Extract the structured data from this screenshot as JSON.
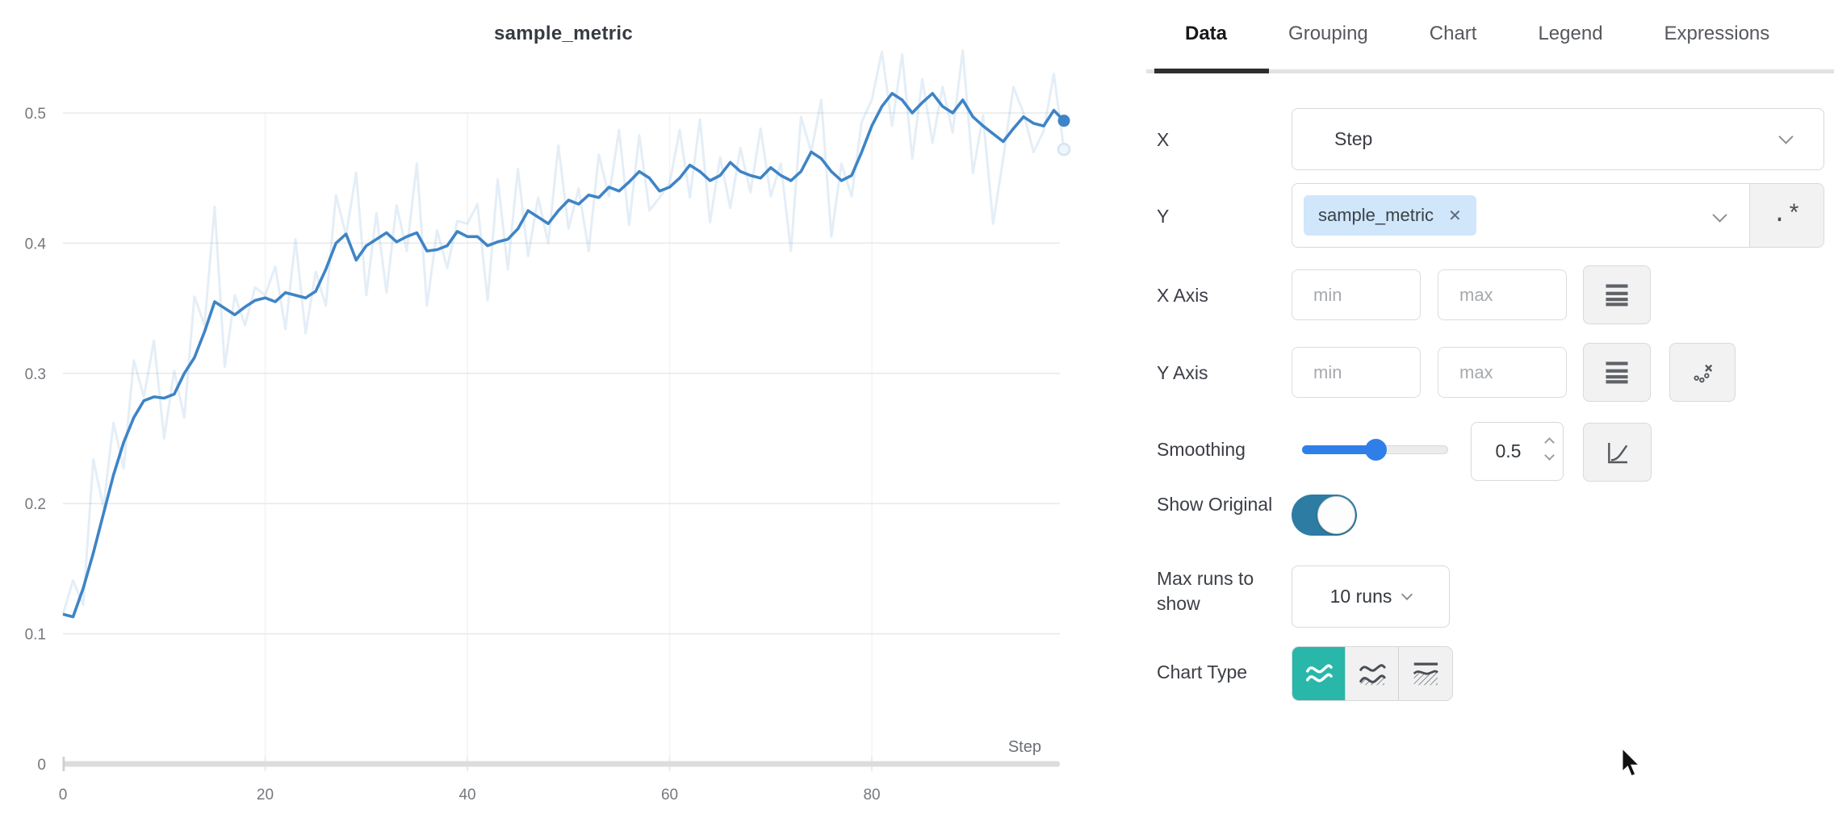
{
  "chart_data": {
    "type": "line",
    "title": "sample_metric",
    "xlabel": "Step",
    "ylabel": "",
    "x_start": 0,
    "x_step": 1,
    "xlim": [
      0,
      99
    ],
    "ylim": [
      0,
      0.56
    ],
    "xticks": [
      0,
      20,
      40,
      60,
      80
    ],
    "yticks": [
      0,
      0.1,
      0.2,
      0.3,
      0.4,
      0.5
    ],
    "grid": true,
    "legend": "none",
    "smoothing": 0.5,
    "line_color": "#3e84c6",
    "original_opacity": 0.14,
    "series": [
      {
        "name": "sample_metric (original)",
        "role": "original",
        "values": [
          0.115,
          0.141,
          0.122,
          0.234,
          0.197,
          0.262,
          0.227,
          0.31,
          0.282,
          0.325,
          0.25,
          0.302,
          0.266,
          0.359,
          0.337,
          0.428,
          0.305,
          0.36,
          0.337,
          0.366,
          0.36,
          0.382,
          0.334,
          0.403,
          0.331,
          0.378,
          0.352,
          0.437,
          0.406,
          0.454,
          0.36,
          0.423,
          0.362,
          0.429,
          0.394,
          0.461,
          0.352,
          0.41,
          0.381,
          0.417,
          0.415,
          0.43,
          0.356,
          0.449,
          0.38,
          0.457,
          0.39,
          0.435,
          0.4,
          0.475,
          0.411,
          0.442,
          0.394,
          0.468,
          0.436,
          0.487,
          0.414,
          0.483,
          0.425,
          0.435,
          0.446,
          0.487,
          0.435,
          0.495,
          0.416,
          0.466,
          0.427,
          0.473,
          0.439,
          0.488,
          0.436,
          0.461,
          0.394,
          0.497,
          0.47,
          0.51,
          0.405,
          0.461,
          0.436,
          0.493,
          0.51,
          0.547,
          0.49,
          0.545,
          0.465,
          0.526,
          0.477,
          0.52,
          0.485,
          0.548,
          0.454,
          0.498,
          0.415,
          0.465,
          0.52,
          0.5,
          0.47,
          0.486,
          0.53,
          0.472
        ]
      },
      {
        "name": "sample_metric (smoothed)",
        "role": "smoothed",
        "values": [
          0.115,
          0.113,
          0.135,
          0.162,
          0.192,
          0.222,
          0.247,
          0.266,
          0.279,
          0.282,
          0.281,
          0.284,
          0.3,
          0.312,
          0.332,
          0.355,
          0.35,
          0.345,
          0.351,
          0.356,
          0.358,
          0.355,
          0.362,
          0.36,
          0.358,
          0.363,
          0.38,
          0.4,
          0.407,
          0.387,
          0.398,
          0.403,
          0.408,
          0.401,
          0.405,
          0.408,
          0.394,
          0.395,
          0.398,
          0.409,
          0.405,
          0.405,
          0.398,
          0.401,
          0.403,
          0.411,
          0.425,
          0.42,
          0.415,
          0.425,
          0.433,
          0.43,
          0.437,
          0.435,
          0.443,
          0.44,
          0.447,
          0.455,
          0.45,
          0.44,
          0.443,
          0.45,
          0.46,
          0.455,
          0.448,
          0.452,
          0.462,
          0.455,
          0.452,
          0.45,
          0.458,
          0.452,
          0.448,
          0.455,
          0.47,
          0.465,
          0.455,
          0.448,
          0.452,
          0.47,
          0.49,
          0.505,
          0.515,
          0.51,
          0.5,
          0.508,
          0.515,
          0.505,
          0.5,
          0.51,
          0.497,
          0.49,
          0.484,
          0.478,
          0.488,
          0.497,
          0.492,
          0.49,
          0.502,
          0.494
        ]
      }
    ]
  },
  "panel": {
    "tabs": [
      {
        "label": "Data",
        "active": true
      },
      {
        "label": "Grouping",
        "active": false
      },
      {
        "label": "Chart",
        "active": false
      },
      {
        "label": "Legend",
        "active": false
      },
      {
        "label": "Expressions",
        "active": false
      }
    ],
    "rows": {
      "x": {
        "label": "X",
        "value": "Step"
      },
      "y": {
        "label": "Y",
        "tag": "sample_metric",
        "remove_icon": "✕",
        "regex_button": ".*"
      },
      "x_axis": {
        "label": "X Axis",
        "min_placeholder": "min",
        "max_placeholder": "max"
      },
      "y_axis": {
        "label": "Y Axis",
        "min_placeholder": "min",
        "max_placeholder": "max"
      },
      "smoothing": {
        "label": "Smoothing",
        "value": "0.5"
      },
      "show_original": {
        "label": "Show Original",
        "enabled": true
      },
      "max_runs": {
        "label": "Max runs to show",
        "value": "10 runs"
      },
      "chart_type": {
        "label": "Chart Type",
        "selected_index": 0,
        "options": [
          "line-plot",
          "area-plot",
          "percentile-plot"
        ]
      }
    },
    "colors": {
      "accent_teal": "#29b7a9",
      "toggle_blue": "#2d7ca3",
      "slider_blue": "#2f7fe8",
      "tag_bg": "#cfe6fb",
      "tab_active": "#16181b"
    }
  }
}
